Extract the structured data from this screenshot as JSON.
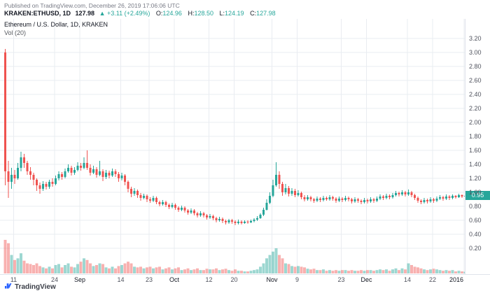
{
  "meta": {
    "published": "Published on TradingView.com, December 26, 2019 17:06:06 UTC"
  },
  "header": {
    "symbol": "KRAKEN:ETHUSD, 1D",
    "last": "127.98",
    "change": "▲ +3.11 (+2.49%)",
    "ohlc": [
      {
        "label": "O:",
        "value": "124.96"
      },
      {
        "label": "H:",
        "value": "128.50"
      },
      {
        "label": "L:",
        "value": "124.19"
      },
      {
        "label": "C:",
        "value": "127.98"
      }
    ]
  },
  "legend": {
    "title": "Ethereum / U.S. Dollar, 1D, KRAKEN",
    "indicator": "Vol (20)"
  },
  "footer": {
    "brand": "TradingView"
  },
  "colors": {
    "up": "#26a69a",
    "down": "#ef5350",
    "vol_up": "rgba(38,166,154,0.45)",
    "vol_down": "rgba(239,83,80,0.45)",
    "grid": "#e9ecf1",
    "badge_bg": "#26a69a",
    "brand_blue": "#2962ff"
  },
  "chart_data": {
    "type": "candlestick",
    "title": "Ethereum / U.S. Dollar, 1D, KRAKEN",
    "exchange": "KRAKEN",
    "interval": "1D",
    "volume_indicator": "Vol (20)",
    "price_badge": "0.95",
    "ylim": [
      0.2,
      3.2
    ],
    "y_ticks": [
      "3.20",
      "3.00",
      "2.80",
      "2.60",
      "2.40",
      "2.20",
      "2.00",
      "1.80",
      "1.60",
      "1.40",
      "1.20",
      "1.00",
      "0.80",
      "0.60",
      "0.40",
      "0.20"
    ],
    "x_labels": [
      {
        "label": "11",
        "day": 3,
        "major": false
      },
      {
        "label": "24",
        "day": 16,
        "major": false
      },
      {
        "label": "Sep",
        "day": 24,
        "major": true
      },
      {
        "label": "14",
        "day": 37,
        "major": false
      },
      {
        "label": "23",
        "day": 46,
        "major": false
      },
      {
        "label": "Oct",
        "day": 54,
        "major": true
      },
      {
        "label": "12",
        "day": 65,
        "major": false
      },
      {
        "label": "20",
        "day": 73,
        "major": false
      },
      {
        "label": "Nov",
        "day": 85,
        "major": true
      },
      {
        "label": "9",
        "day": 93,
        "major": false
      },
      {
        "label": "23",
        "day": 107,
        "major": false
      },
      {
        "label": "Dec",
        "day": 115,
        "major": true
      },
      {
        "label": "14",
        "day": 128,
        "major": false
      },
      {
        "label": "22",
        "day": 136,
        "major": false
      },
      {
        "label": "2016",
        "day": 146,
        "major": true
      }
    ],
    "candles_format": [
      "open",
      "high",
      "low",
      "close",
      "relative_volume"
    ],
    "candles": [
      [
        3.0,
        3.05,
        1.1,
        1.3,
        1.0
      ],
      [
        1.3,
        1.45,
        0.92,
        1.15,
        0.9
      ],
      [
        1.15,
        1.35,
        1.05,
        1.25,
        0.55
      ],
      [
        1.25,
        1.32,
        1.12,
        1.2,
        0.4
      ],
      [
        1.2,
        1.42,
        1.18,
        1.35,
        0.45
      ],
      [
        1.35,
        1.58,
        1.3,
        1.5,
        0.6
      ],
      [
        1.5,
        1.55,
        1.35,
        1.42,
        0.38
      ],
      [
        1.42,
        1.45,
        1.25,
        1.3,
        0.3
      ],
      [
        1.3,
        1.36,
        1.18,
        1.25,
        0.28
      ],
      [
        1.25,
        1.28,
        1.1,
        1.18,
        0.25
      ],
      [
        1.18,
        1.2,
        1.02,
        1.1,
        0.3
      ],
      [
        1.1,
        1.14,
        0.98,
        1.05,
        0.22
      ],
      [
        1.05,
        1.16,
        1.02,
        1.12,
        0.18
      ],
      [
        1.12,
        1.15,
        1.04,
        1.08,
        0.15
      ],
      [
        1.08,
        1.18,
        1.05,
        1.15,
        0.2
      ],
      [
        1.15,
        1.2,
        1.08,
        1.12,
        0.15
      ],
      [
        1.12,
        1.24,
        1.1,
        1.2,
        0.25
      ],
      [
        1.2,
        1.3,
        1.17,
        1.26,
        0.28
      ],
      [
        1.26,
        1.29,
        1.18,
        1.22,
        0.18
      ],
      [
        1.22,
        1.34,
        1.2,
        1.3,
        0.25
      ],
      [
        1.3,
        1.4,
        1.28,
        1.35,
        0.3
      ],
      [
        1.35,
        1.38,
        1.24,
        1.28,
        0.2
      ],
      [
        1.28,
        1.36,
        1.25,
        1.32,
        0.18
      ],
      [
        1.32,
        1.43,
        1.3,
        1.38,
        0.28
      ],
      [
        1.38,
        1.42,
        1.31,
        1.35,
        0.35
      ],
      [
        1.35,
        1.5,
        1.33,
        1.42,
        0.45
      ],
      [
        1.42,
        1.6,
        1.32,
        1.35,
        0.4
      ],
      [
        1.35,
        1.4,
        1.24,
        1.28,
        0.3
      ],
      [
        1.28,
        1.38,
        1.26,
        1.33,
        0.22
      ],
      [
        1.33,
        1.36,
        1.21,
        1.25,
        0.25
      ],
      [
        1.25,
        1.45,
        1.23,
        1.3,
        0.3
      ],
      [
        1.3,
        1.33,
        1.16,
        1.22,
        0.28
      ],
      [
        1.22,
        1.32,
        1.19,
        1.28,
        0.18
      ],
      [
        1.28,
        1.31,
        1.2,
        1.24,
        0.15
      ],
      [
        1.24,
        1.34,
        1.22,
        1.3,
        0.2
      ],
      [
        1.3,
        1.33,
        1.22,
        1.26,
        0.15
      ],
      [
        1.26,
        1.29,
        1.15,
        1.2,
        0.22
      ],
      [
        1.2,
        1.28,
        1.17,
        1.24,
        0.25
      ],
      [
        1.24,
        1.26,
        1.1,
        1.15,
        0.3
      ],
      [
        1.15,
        1.17,
        1.0,
        1.05,
        0.35
      ],
      [
        1.05,
        1.08,
        0.93,
        0.98,
        0.3
      ],
      [
        0.98,
        1.06,
        0.95,
        1.02,
        0.2
      ],
      [
        1.02,
        1.04,
        0.92,
        0.96,
        0.18
      ],
      [
        0.96,
        0.99,
        0.88,
        0.92,
        0.2
      ],
      [
        0.92,
        0.98,
        0.9,
        0.95,
        0.15
      ],
      [
        0.95,
        0.97,
        0.86,
        0.9,
        0.18
      ],
      [
        0.9,
        0.93,
        0.85,
        0.88,
        0.2
      ],
      [
        0.88,
        0.95,
        0.86,
        0.92,
        0.15
      ],
      [
        0.92,
        0.94,
        0.83,
        0.86,
        0.18
      ],
      [
        0.86,
        0.88,
        0.8,
        0.83,
        0.2
      ],
      [
        0.83,
        0.89,
        0.81,
        0.86,
        0.12
      ],
      [
        0.86,
        0.88,
        0.79,
        0.82,
        0.15
      ],
      [
        0.82,
        0.84,
        0.76,
        0.79,
        0.18
      ],
      [
        0.79,
        0.85,
        0.77,
        0.82,
        0.12
      ],
      [
        0.82,
        0.84,
        0.75,
        0.78,
        0.15
      ],
      [
        0.78,
        0.8,
        0.72,
        0.75,
        0.18
      ],
      [
        0.75,
        0.81,
        0.73,
        0.78,
        0.1
      ],
      [
        0.78,
        0.8,
        0.71,
        0.74,
        0.12
      ],
      [
        0.74,
        0.76,
        0.68,
        0.71,
        0.15
      ],
      [
        0.71,
        0.77,
        0.69,
        0.74,
        0.1
      ],
      [
        0.74,
        0.76,
        0.67,
        0.7,
        0.12
      ],
      [
        0.7,
        0.72,
        0.64,
        0.67,
        0.15
      ],
      [
        0.67,
        0.73,
        0.65,
        0.7,
        0.1
      ],
      [
        0.7,
        0.72,
        0.64,
        0.67,
        0.1
      ],
      [
        0.67,
        0.69,
        0.61,
        0.64,
        0.14
      ],
      [
        0.64,
        0.69,
        0.62,
        0.66,
        0.12
      ],
      [
        0.66,
        0.68,
        0.6,
        0.63,
        0.12
      ],
      [
        0.63,
        0.65,
        0.57,
        0.6,
        0.15
      ],
      [
        0.6,
        0.65,
        0.58,
        0.62,
        0.1
      ],
      [
        0.62,
        0.64,
        0.56,
        0.59,
        0.12
      ],
      [
        0.59,
        0.61,
        0.54,
        0.57,
        0.14
      ],
      [
        0.57,
        0.62,
        0.55,
        0.6,
        0.1
      ],
      [
        0.6,
        0.62,
        0.55,
        0.58,
        0.08
      ],
      [
        0.58,
        0.6,
        0.53,
        0.56,
        0.12
      ],
      [
        0.56,
        0.61,
        0.54,
        0.58,
        0.08
      ],
      [
        0.58,
        0.6,
        0.54,
        0.56,
        0.08
      ],
      [
        0.56,
        0.6,
        0.55,
        0.58,
        0.06
      ],
      [
        0.58,
        0.6,
        0.55,
        0.57,
        0.06
      ],
      [
        0.57,
        0.61,
        0.56,
        0.59,
        0.08
      ],
      [
        0.59,
        0.63,
        0.57,
        0.61,
        0.1
      ],
      [
        0.61,
        0.66,
        0.59,
        0.63,
        0.12
      ],
      [
        0.63,
        0.7,
        0.62,
        0.68,
        0.2
      ],
      [
        0.68,
        0.78,
        0.66,
        0.75,
        0.3
      ],
      [
        0.75,
        0.9,
        0.74,
        0.85,
        0.45
      ],
      [
        0.85,
        1.0,
        0.83,
        0.95,
        0.55
      ],
      [
        0.95,
        1.18,
        0.93,
        1.1,
        0.65
      ],
      [
        1.1,
        1.43,
        1.08,
        1.25,
        0.75
      ],
      [
        1.25,
        1.3,
        1.05,
        1.12,
        0.55
      ],
      [
        1.12,
        1.15,
        0.95,
        1.0,
        0.45
      ],
      [
        1.0,
        1.12,
        0.97,
        1.06,
        0.3
      ],
      [
        1.06,
        1.09,
        0.94,
        0.98,
        0.28
      ],
      [
        0.98,
        1.06,
        0.95,
        1.02,
        0.22
      ],
      [
        1.02,
        1.05,
        0.93,
        0.96,
        0.2
      ],
      [
        0.96,
        1.03,
        0.94,
        0.99,
        0.22
      ],
      [
        0.99,
        1.01,
        0.9,
        0.93,
        0.2
      ],
      [
        0.93,
        0.96,
        0.87,
        0.9,
        0.18
      ],
      [
        0.9,
        0.96,
        0.88,
        0.93,
        0.14
      ],
      [
        0.93,
        0.95,
        0.87,
        0.9,
        0.12
      ],
      [
        0.9,
        0.92,
        0.85,
        0.88,
        0.14
      ],
      [
        0.88,
        0.94,
        0.86,
        0.91,
        0.1
      ],
      [
        0.91,
        0.93,
        0.86,
        0.89,
        0.1
      ],
      [
        0.89,
        0.95,
        0.87,
        0.92,
        0.12
      ],
      [
        0.92,
        0.94,
        0.88,
        0.9,
        0.08
      ],
      [
        0.9,
        0.96,
        0.88,
        0.93,
        0.1
      ],
      [
        0.93,
        0.95,
        0.88,
        0.91,
        0.08
      ],
      [
        0.91,
        0.93,
        0.85,
        0.88,
        0.1
      ],
      [
        0.88,
        0.94,
        0.86,
        0.91,
        0.08
      ],
      [
        0.91,
        0.93,
        0.86,
        0.89,
        0.1
      ],
      [
        0.89,
        0.95,
        0.87,
        0.92,
        0.1
      ],
      [
        0.92,
        0.94,
        0.87,
        0.9,
        0.08
      ],
      [
        0.9,
        0.92,
        0.84,
        0.87,
        0.1
      ],
      [
        0.87,
        0.93,
        0.85,
        0.9,
        0.08
      ],
      [
        0.9,
        0.92,
        0.85,
        0.88,
        0.08
      ],
      [
        0.88,
        0.9,
        0.83,
        0.86,
        0.1
      ],
      [
        0.86,
        0.92,
        0.84,
        0.89,
        0.08
      ],
      [
        0.89,
        0.91,
        0.84,
        0.87,
        0.1
      ],
      [
        0.87,
        0.93,
        0.85,
        0.9,
        0.1
      ],
      [
        0.9,
        0.92,
        0.85,
        0.88,
        0.08
      ],
      [
        0.88,
        0.94,
        0.86,
        0.91,
        0.1
      ],
      [
        0.91,
        0.97,
        0.89,
        0.94,
        0.12
      ],
      [
        0.94,
        0.96,
        0.89,
        0.92,
        0.1
      ],
      [
        0.92,
        0.98,
        0.9,
        0.95,
        0.12
      ],
      [
        0.95,
        0.97,
        0.9,
        0.93,
        0.08
      ],
      [
        0.93,
        0.99,
        0.91,
        0.96,
        0.12
      ],
      [
        0.96,
        1.02,
        0.94,
        0.99,
        0.15
      ],
      [
        0.99,
        1.01,
        0.94,
        0.97,
        0.1
      ],
      [
        0.97,
        1.03,
        0.95,
        1.0,
        0.15
      ],
      [
        1.0,
        1.02,
        0.94,
        0.97,
        0.12
      ],
      [
        0.97,
        1.04,
        0.95,
        1.0,
        0.3
      ],
      [
        1.0,
        1.02,
        0.93,
        0.96,
        0.25
      ],
      [
        0.96,
        0.98,
        0.89,
        0.92,
        0.2
      ],
      [
        0.92,
        0.94,
        0.85,
        0.88,
        0.18
      ],
      [
        0.88,
        0.9,
        0.83,
        0.86,
        0.15
      ],
      [
        0.86,
        0.92,
        0.84,
        0.89,
        0.12
      ],
      [
        0.89,
        0.91,
        0.84,
        0.87,
        0.1
      ],
      [
        0.87,
        0.93,
        0.85,
        0.9,
        0.12
      ],
      [
        0.9,
        0.92,
        0.85,
        0.88,
        0.14
      ],
      [
        0.88,
        0.94,
        0.86,
        0.91,
        0.12
      ],
      [
        0.91,
        0.96,
        0.89,
        0.93,
        0.1
      ],
      [
        0.93,
        0.95,
        0.88,
        0.91,
        0.08
      ],
      [
        0.91,
        0.97,
        0.89,
        0.94,
        0.1
      ],
      [
        0.94,
        0.96,
        0.89,
        0.92,
        0.08
      ],
      [
        0.92,
        0.97,
        0.9,
        0.95,
        0.1
      ],
      [
        0.95,
        0.96,
        0.91,
        0.93,
        0.06
      ],
      [
        0.93,
        0.98,
        0.92,
        0.96,
        0.08
      ],
      [
        0.96,
        0.97,
        0.92,
        0.94,
        0.06
      ],
      [
        0.94,
        0.97,
        0.93,
        0.95,
        0.05
      ]
    ]
  }
}
